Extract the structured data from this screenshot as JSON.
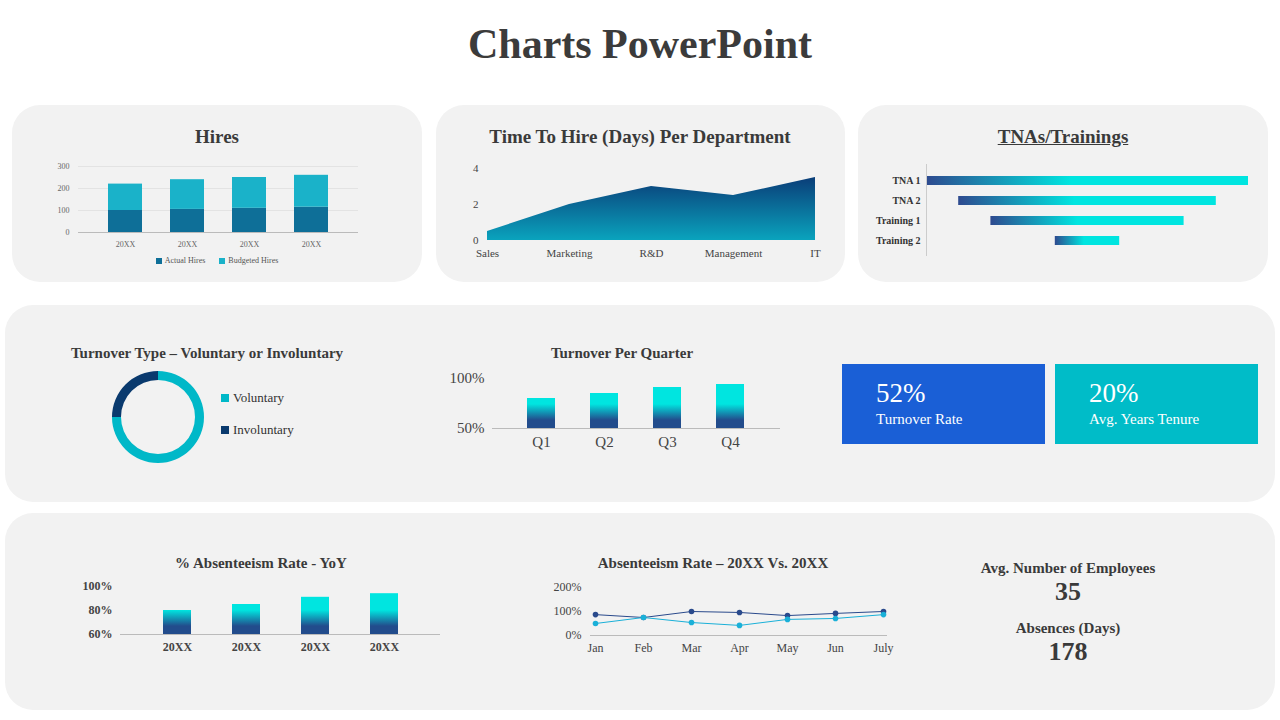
{
  "title": "Charts PowerPoint",
  "chart_data": [
    {
      "type": "bar",
      "title": "Hires",
      "categories": [
        "20XX",
        "20XX",
        "20XX",
        "20XX"
      ],
      "stacked": true,
      "series": [
        {
          "name": "Actual Hires",
          "color": "#0e6f98",
          "values": [
            100,
            105,
            110,
            115
          ]
        },
        {
          "name": "Budgeted Hires",
          "color": "#1ab2c9",
          "values": [
            120,
            135,
            140,
            145
          ]
        }
      ],
      "ylim": [
        0,
        300
      ],
      "yticks": [
        0,
        100,
        200,
        300
      ],
      "grid": true,
      "legend": "bottom"
    },
    {
      "type": "area",
      "title": "Time To Hire (Days) Per Department",
      "categories": [
        "Sales",
        "Marketing",
        "R&D",
        "Management",
        "IT"
      ],
      "values": [
        0.5,
        2,
        3,
        2.5,
        3.5
      ],
      "color": "#0aa3bd",
      "ylim": [
        0,
        4
      ],
      "yticks": [
        0,
        2,
        4
      ]
    },
    {
      "type": "bar",
      "title": "TNAs/Trainings",
      "orientation": "horizontal",
      "categories": [
        "TNA 1",
        "TNA 2",
        "Training 1",
        "Training 2"
      ],
      "start": [
        0,
        10,
        20,
        40
      ],
      "end": [
        100,
        90,
        80,
        60
      ],
      "color": "#00e5e0",
      "xlim": [
        0,
        100
      ],
      "tick_labels": "y"
    },
    {
      "type": "donut",
      "title": "Turnover Type – Voluntary or Involuntary",
      "categories": [
        "Voluntary",
        "Involuntary"
      ],
      "values": [
        75,
        25
      ],
      "colors": [
        "#00b8c8",
        "#0a3a6e"
      ],
      "legend": "right"
    },
    {
      "type": "bar",
      "title": "Turnover Per Quarter",
      "categories": [
        "Q1",
        "Q2",
        "Q3",
        "Q4"
      ],
      "values": [
        80,
        85,
        91,
        94
      ],
      "color": "#00e5e0",
      "ylim": [
        50,
        100
      ],
      "yticks": [
        {
          "value": 50,
          "label": "50%"
        },
        {
          "value": 100,
          "label": "100%"
        }
      ]
    },
    {
      "type": "bar",
      "title": "% Absenteeism Rate - YoY",
      "categories": [
        "20XX",
        "20XX",
        "20XX",
        "20XX"
      ],
      "values": [
        80,
        85,
        91,
        94
      ],
      "color": "#00e5e0",
      "ylim": [
        60,
        100
      ],
      "yticks": [
        {
          "value": 60,
          "label": "60%"
        },
        {
          "value": 80,
          "label": "80%"
        },
        {
          "value": 100,
          "label": "100%"
        }
      ]
    },
    {
      "type": "line",
      "title": "Absenteeism Rate – 20XX Vs. 20XX",
      "categories": [
        "Jan",
        "Feb",
        "Mar",
        "Apr",
        "May",
        "Jun",
        "July"
      ],
      "series": [
        {
          "color": "#2a4a8c",
          "values": [
            87,
            75,
            100,
            96,
            83,
            92,
            100
          ]
        },
        {
          "color": "#1ab0d8",
          "values": [
            50,
            75,
            54,
            42,
            67,
            71,
            87
          ]
        }
      ],
      "marker": "circle",
      "ylim": [
        0,
        200
      ],
      "yticks": [
        {
          "value": 0,
          "label": "0%"
        },
        {
          "value": 100,
          "label": "100%"
        },
        {
          "value": 200,
          "label": "200%"
        }
      ]
    }
  ],
  "kpis": [
    {
      "value": "52%",
      "label": "Turnover Rate",
      "color": "#1a5fd6"
    },
    {
      "value": "20%",
      "label": "Avg. Years Tenure",
      "color": "#00bcc8"
    }
  ],
  "stats": [
    {
      "label": "Avg. Number of Employees",
      "value": 35
    },
    {
      "label": "Absences (Days)",
      "value": 178
    }
  ]
}
